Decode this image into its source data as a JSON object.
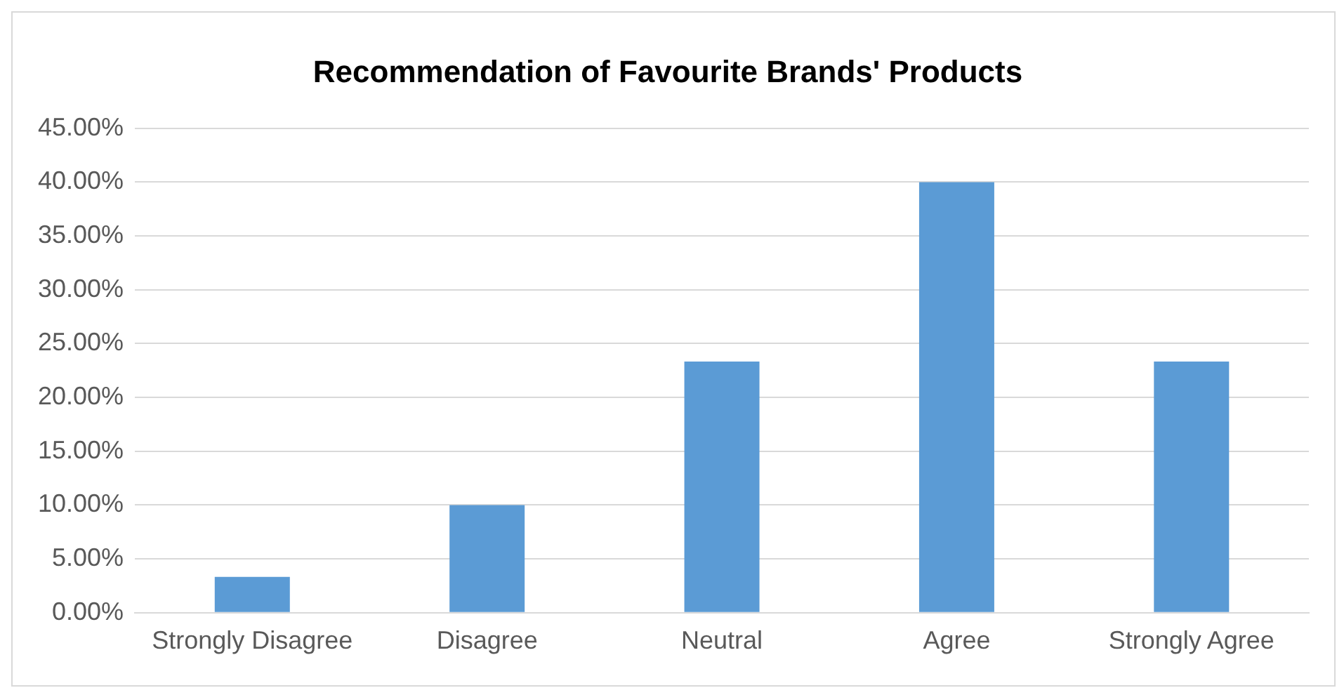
{
  "chart_data": {
    "type": "bar",
    "title": "Recommendation of Favourite Brands' Products",
    "categories": [
      "Strongly Disagree",
      "Disagree",
      "Neutral",
      "Agree",
      "Strongly Agree"
    ],
    "values": [
      3.33,
      10,
      23.33,
      40,
      23.33
    ],
    "color": "#5b9bd5",
    "ylim": [
      0,
      45
    ],
    "yticks": [
      {
        "value": 0,
        "label": "0.00%"
      },
      {
        "value": 5,
        "label": "5.00%"
      },
      {
        "value": 10,
        "label": "10.00%"
      },
      {
        "value": 15,
        "label": "15.00%"
      },
      {
        "value": 20,
        "label": "20.00%"
      },
      {
        "value": 25,
        "label": "25.00%"
      },
      {
        "value": 30,
        "label": "30.00%"
      },
      {
        "value": 35,
        "label": "35.00%"
      },
      {
        "value": 40,
        "label": "40.00%"
      },
      {
        "value": 45,
        "label": "45.00%"
      }
    ],
    "grid": "y",
    "legend": false
  }
}
